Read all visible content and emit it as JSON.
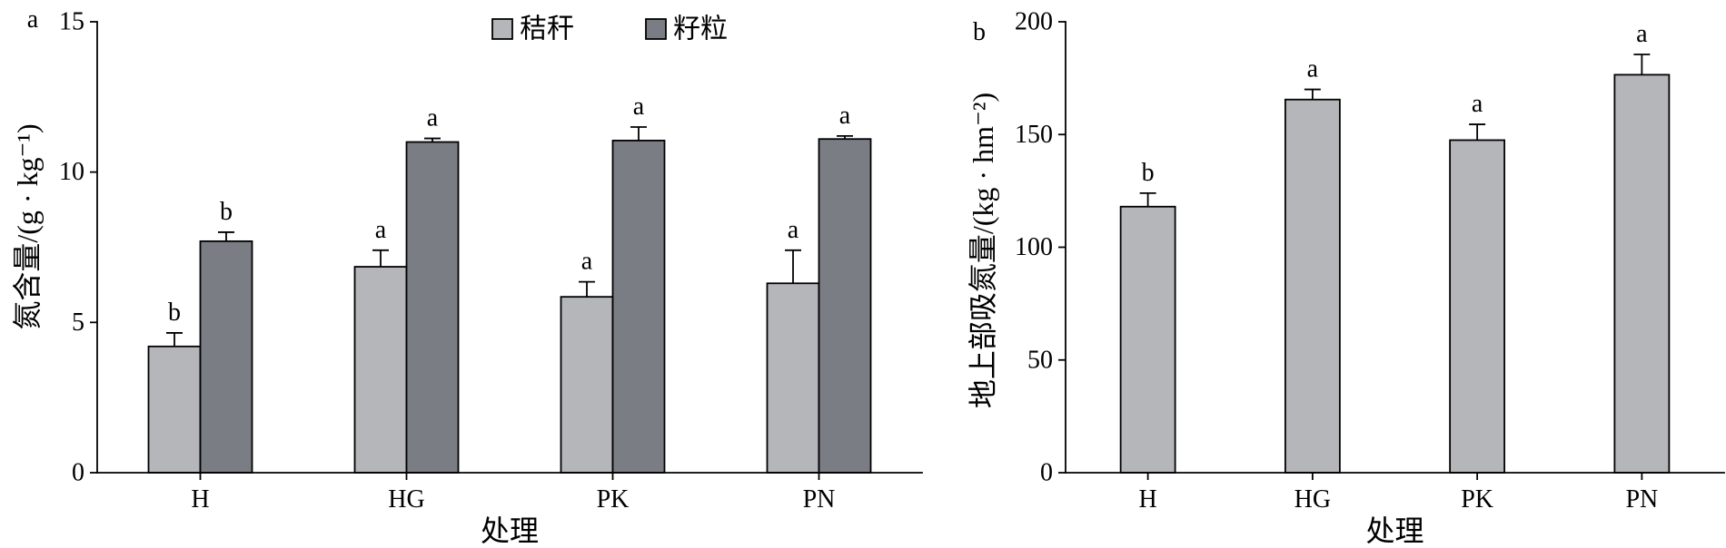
{
  "chart_data": [
    {
      "panel": "a",
      "type": "bar",
      "categories": [
        "H",
        "HG",
        "PK",
        "PN"
      ],
      "series": [
        {
          "name": "秸秆",
          "values": [
            4.2,
            6.85,
            5.85,
            6.3
          ],
          "errors": [
            0.45,
            0.55,
            0.5,
            1.1
          ],
          "letters": [
            "b",
            "a",
            "a",
            "a"
          ],
          "color": "#b4b6ba"
        },
        {
          "name": "籽粒",
          "values": [
            7.7,
            11.0,
            11.05,
            11.1
          ],
          "errors": [
            0.3,
            0.12,
            0.45,
            0.1
          ],
          "letters": [
            "b",
            "a",
            "a",
            "a"
          ],
          "color": "#7b7d85"
        }
      ],
      "xlabel": "处理",
      "ylabel": "氮含量/(g · kg⁻¹)",
      "ylim": [
        0,
        15
      ],
      "yticks": [
        0,
        5,
        10,
        15
      ],
      "legend": "top-center",
      "grid": false
    },
    {
      "panel": "b",
      "type": "bar",
      "categories": [
        "H",
        "HG",
        "PK",
        "PN"
      ],
      "series": [
        {
          "values": [
            118,
            165.5,
            147.5,
            176.5
          ],
          "errors": [
            6,
            4.5,
            7,
            9
          ],
          "letters": [
            "b",
            "a",
            "a",
            "a"
          ],
          "color": "#b4b6ba"
        }
      ],
      "xlabel": "处理",
      "ylabel": "地上部吸氮量/(kg · hm⁻²)",
      "ylim": [
        0,
        200
      ],
      "yticks": [
        0,
        50,
        100,
        150,
        200
      ],
      "legend": "none",
      "grid": false
    }
  ]
}
